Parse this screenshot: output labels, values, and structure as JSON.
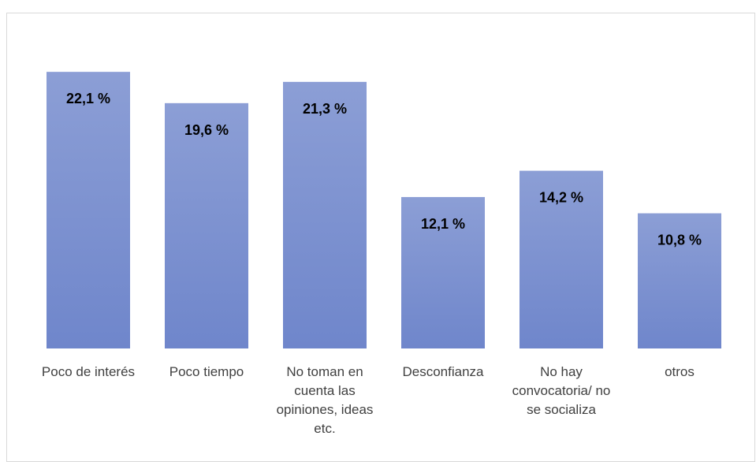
{
  "chart_data": {
    "type": "bar",
    "categories": [
      "Poco de interés",
      "Poco tiempo",
      "No toman en cuenta las opiniones, ideas etc.",
      "Desconfianza",
      "No hay convocatoria/ no se socializa",
      "otros"
    ],
    "values": [
      22.1,
      19.6,
      21.3,
      12.1,
      14.2,
      10.8
    ],
    "value_labels": [
      "22,1 %",
      "19,6 %",
      "21,3 %",
      "12,1 %",
      "14,2 %",
      "10,8 %"
    ],
    "color": "#6f86cb",
    "ylim": [
      0,
      24
    ]
  }
}
